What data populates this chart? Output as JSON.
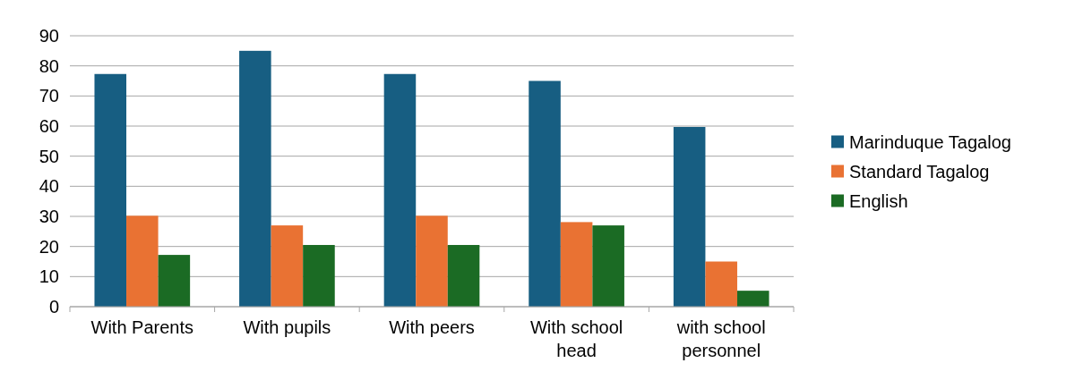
{
  "chart_data": {
    "type": "bar",
    "categories": [
      "With Parents",
      "With pupils",
      "With peers",
      "With school head",
      "with school personnel"
    ],
    "series": [
      {
        "name": "Marinduque Tagalog",
        "color": "#175e82",
        "values": [
          77.3,
          85,
          77.3,
          75,
          59.7
        ]
      },
      {
        "name": "Standard Tagalog",
        "color": "#e97233",
        "values": [
          30.2,
          27,
          30.2,
          28.1,
          15
        ]
      },
      {
        "name": "English",
        "color": "#1b6b24",
        "values": [
          17.2,
          20.5,
          20.5,
          27,
          5.3
        ]
      }
    ],
    "ylim": [
      0,
      90
    ],
    "yticks": [
      0,
      10,
      20,
      30,
      40,
      50,
      60,
      70,
      80,
      90
    ],
    "grid": "y",
    "legend": "right"
  }
}
